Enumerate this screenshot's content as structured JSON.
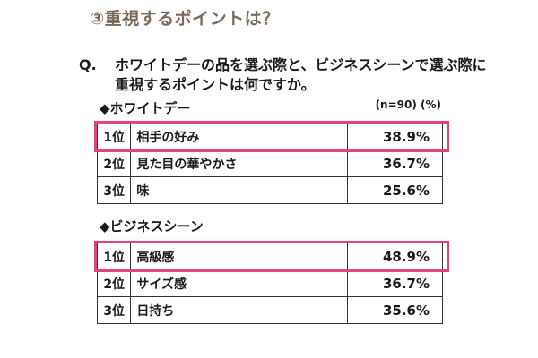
{
  "heading": "③重視するポイントは？",
  "question": {
    "marker": "Q.",
    "text": "ホワイトデーの品を選ぶ際と、ビジネスシーンで選ぶ際に重視するポイントは何ですか。"
  },
  "note": "(n=90) (%)",
  "sections": [
    {
      "label": "◆ホワイトデー",
      "rows": [
        {
          "rank": "1位",
          "item": "相手の好み",
          "pct": "38.9%"
        },
        {
          "rank": "2位",
          "item": "見た目の華やかさ",
          "pct": "36.7%"
        },
        {
          "rank": "3位",
          "item": "味",
          "pct": "25.6%"
        }
      ]
    },
    {
      "label": "◆ビジネスシーン",
      "rows": [
        {
          "rank": "1位",
          "item": "高級感",
          "pct": "48.9%"
        },
        {
          "rank": "2位",
          "item": "サイズ感",
          "pct": "36.7%"
        },
        {
          "rank": "3位",
          "item": "日持ち",
          "pct": "35.6%"
        }
      ]
    }
  ],
  "colors": {
    "highlight": "#e0457f",
    "heading": "#7a6a5a"
  }
}
